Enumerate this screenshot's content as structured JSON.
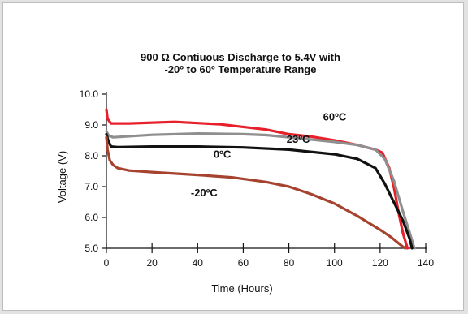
{
  "chart_data": {
    "type": "line",
    "title_line1": "900 Ω Contiuous Discharge to 5.4V with",
    "title_line2": "-20º to 60º Temperature Range",
    "xlabel": "Time (Hours)",
    "ylabel": "Voltage (V)",
    "xlim": [
      0,
      140
    ],
    "ylim": [
      5.0,
      10.0
    ],
    "x_ticks": [
      0,
      20,
      40,
      60,
      80,
      100,
      120,
      140
    ],
    "x_tick_labels": [
      "0",
      "20",
      "40",
      "60",
      "80",
      "100",
      "120",
      "140"
    ],
    "y_ticks": [
      5,
      6,
      7,
      8,
      9,
      10
    ],
    "y_tick_labels": [
      "5.0",
      "6.0",
      "7.0",
      "8.0",
      "9.0",
      "10.0"
    ],
    "grid": false,
    "series": [
      {
        "name": "60ºC",
        "color": "#e8202a",
        "points": [
          [
            0,
            9.5
          ],
          [
            0.5,
            9.2
          ],
          [
            2,
            9.05
          ],
          [
            10,
            9.05
          ],
          [
            30,
            9.1
          ],
          [
            50,
            9.02
          ],
          [
            70,
            8.85
          ],
          [
            80,
            8.7
          ],
          [
            90,
            8.62
          ],
          [
            100,
            8.5
          ],
          [
            110,
            8.35
          ],
          [
            118,
            8.2
          ],
          [
            121,
            8.1
          ],
          [
            124,
            7.6
          ],
          [
            126,
            7.0
          ],
          [
            128,
            6.2
          ],
          [
            130,
            5.5
          ],
          [
            132,
            5.0
          ]
        ]
      },
      {
        "name": "23ºC",
        "color": "#8f8f8f",
        "points": [
          [
            0,
            8.8
          ],
          [
            1,
            8.65
          ],
          [
            3,
            8.6
          ],
          [
            20,
            8.68
          ],
          [
            40,
            8.72
          ],
          [
            60,
            8.7
          ],
          [
            70,
            8.67
          ],
          [
            80,
            8.6
          ],
          [
            100,
            8.45
          ],
          [
            110,
            8.35
          ],
          [
            118,
            8.2
          ],
          [
            122,
            7.9
          ],
          [
            126,
            7.2
          ],
          [
            130,
            6.2
          ],
          [
            133,
            5.5
          ],
          [
            135,
            5.0
          ]
        ]
      },
      {
        "name": "0ºC",
        "color": "#111111",
        "points": [
          [
            0,
            8.7
          ],
          [
            0.8,
            8.5
          ],
          [
            2,
            8.3
          ],
          [
            5,
            8.28
          ],
          [
            20,
            8.3
          ],
          [
            40,
            8.3
          ],
          [
            60,
            8.27
          ],
          [
            80,
            8.2
          ],
          [
            100,
            8.05
          ],
          [
            110,
            7.9
          ],
          [
            118,
            7.6
          ],
          [
            122,
            7.1
          ],
          [
            126,
            6.5
          ],
          [
            130,
            5.9
          ],
          [
            133,
            5.3
          ],
          [
            134,
            5.0
          ]
        ]
      },
      {
        "name": "-20ºC",
        "color": "#a6432f",
        "points": [
          [
            0,
            8.6
          ],
          [
            0.5,
            8.2
          ],
          [
            1.5,
            7.85
          ],
          [
            3,
            7.7
          ],
          [
            5,
            7.6
          ],
          [
            10,
            7.52
          ],
          [
            20,
            7.47
          ],
          [
            40,
            7.38
          ],
          [
            55,
            7.3
          ],
          [
            70,
            7.15
          ],
          [
            80,
            7.0
          ],
          [
            90,
            6.75
          ],
          [
            100,
            6.45
          ],
          [
            110,
            6.05
          ],
          [
            120,
            5.6
          ],
          [
            125,
            5.35
          ],
          [
            130,
            5.05
          ],
          [
            131,
            5.0
          ]
        ]
      }
    ],
    "labels": [
      {
        "text": "60ºC",
        "x": 95,
        "y": 9.15
      },
      {
        "text": "23ºC",
        "x": 79,
        "y": 8.42
      },
      {
        "text": "0ºC",
        "x": 47,
        "y": 7.93
      },
      {
        "text": "-20ºC",
        "x": 37,
        "y": 6.68
      }
    ]
  }
}
